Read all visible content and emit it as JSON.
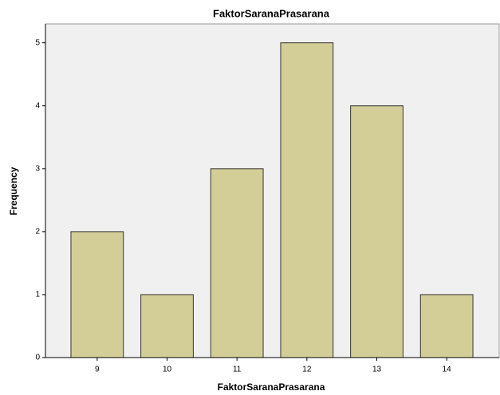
{
  "chart_data": {
    "type": "bar",
    "title": "FaktorSaranaPrasarana",
    "x_label": "FaktorSaranaPrasarana",
    "y_label": "Frequency",
    "categories": [
      "9",
      "10",
      "11",
      "12",
      "13",
      "14"
    ],
    "values": [
      2,
      1,
      3,
      5,
      4,
      1
    ],
    "color": "#d3ce97",
    "ylim": [
      0,
      5.3
    ],
    "yticks": [
      0,
      1,
      2,
      3,
      4,
      5
    ],
    "grid": false
  }
}
